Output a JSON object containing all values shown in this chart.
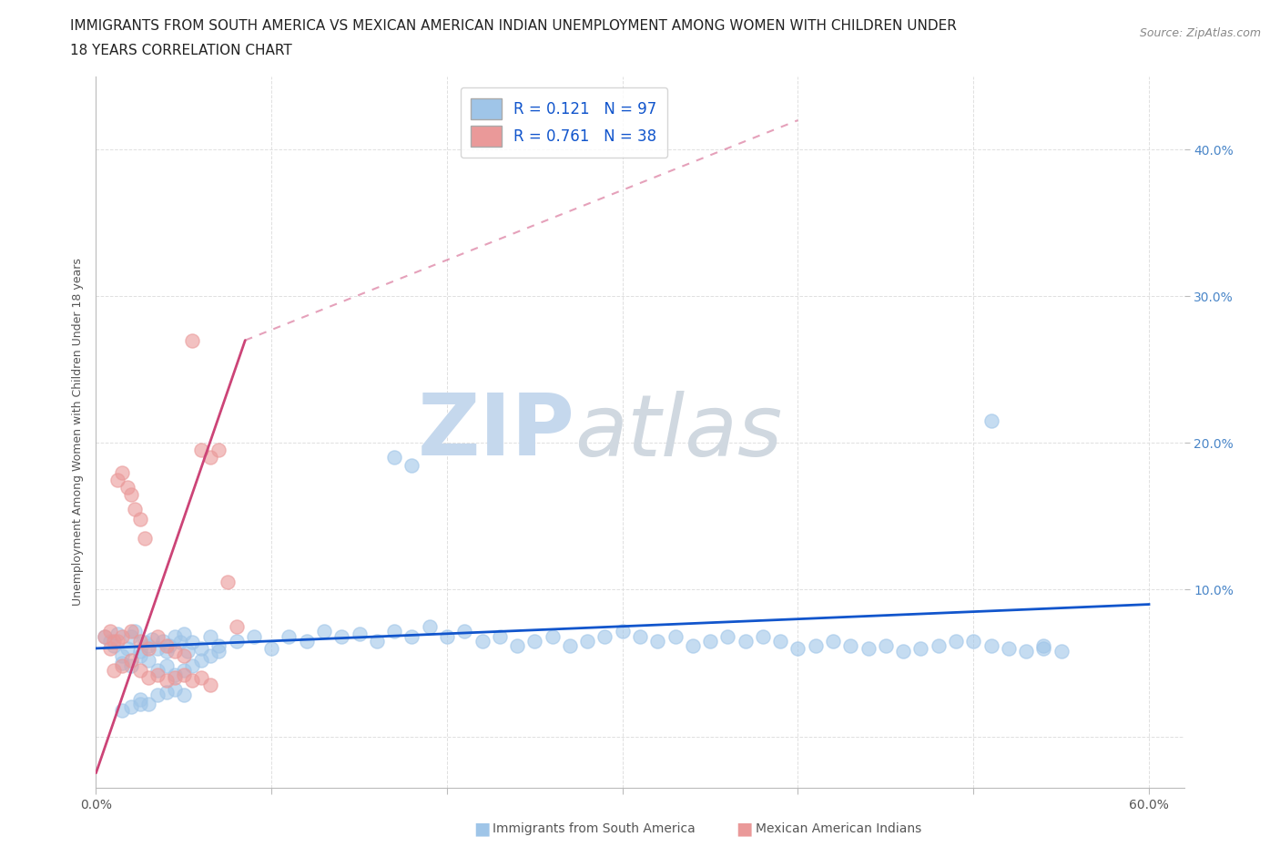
{
  "title_line1": "IMMIGRANTS FROM SOUTH AMERICA VS MEXICAN AMERICAN INDIAN UNEMPLOYMENT AMONG WOMEN WITH CHILDREN UNDER",
  "title_line2": "18 YEARS CORRELATION CHART",
  "source": "Source: ZipAtlas.com",
  "ylabel": "Unemployment Among Women with Children Under 18 years",
  "xlim": [
    0.0,
    0.62
  ],
  "ylim": [
    -0.035,
    0.45
  ],
  "blue_R": 0.121,
  "blue_N": 97,
  "pink_R": 0.761,
  "pink_N": 38,
  "blue_color": "#9fc5e8",
  "pink_color": "#ea9999",
  "blue_line_color": "#1155cc",
  "pink_line_color": "#cc4477",
  "right_tick_color": "#4a86c8",
  "watermark_zip_color": "#c5d8ed",
  "watermark_atlas_color": "#d0d8e0",
  "grid_color": "#e0e0e0",
  "background_color": "#ffffff",
  "title_fontsize": 11,
  "axis_label_fontsize": 9,
  "tick_fontsize": 10,
  "legend_fontsize": 12,
  "source_fontsize": 9,
  "blue_x": [
    0.005,
    0.008,
    0.01,
    0.012,
    0.015,
    0.018,
    0.02,
    0.022,
    0.025,
    0.028,
    0.03,
    0.032,
    0.035,
    0.038,
    0.04,
    0.042,
    0.045,
    0.048,
    0.05,
    0.052,
    0.055,
    0.06,
    0.065,
    0.07,
    0.015,
    0.02,
    0.025,
    0.03,
    0.035,
    0.04,
    0.045,
    0.05,
    0.055,
    0.06,
    0.065,
    0.07,
    0.08,
    0.09,
    0.1,
    0.11,
    0.12,
    0.13,
    0.14,
    0.15,
    0.16,
    0.17,
    0.18,
    0.19,
    0.2,
    0.21,
    0.22,
    0.23,
    0.24,
    0.25,
    0.26,
    0.27,
    0.28,
    0.29,
    0.3,
    0.31,
    0.32,
    0.33,
    0.34,
    0.35,
    0.36,
    0.37,
    0.38,
    0.39,
    0.4,
    0.41,
    0.42,
    0.43,
    0.44,
    0.45,
    0.46,
    0.47,
    0.48,
    0.49,
    0.5,
    0.51,
    0.52,
    0.53,
    0.54,
    0.55,
    0.17,
    0.18,
    0.51,
    0.54,
    0.025,
    0.03,
    0.035,
    0.015,
    0.02,
    0.025,
    0.04,
    0.045,
    0.05
  ],
  "blue_y": [
    0.068,
    0.065,
    0.062,
    0.07,
    0.055,
    0.06,
    0.068,
    0.072,
    0.058,
    0.064,
    0.062,
    0.066,
    0.06,
    0.065,
    0.058,
    0.062,
    0.068,
    0.064,
    0.07,
    0.058,
    0.064,
    0.06,
    0.068,
    0.062,
    0.05,
    0.048,
    0.055,
    0.052,
    0.045,
    0.048,
    0.042,
    0.045,
    0.048,
    0.052,
    0.055,
    0.058,
    0.065,
    0.068,
    0.06,
    0.068,
    0.065,
    0.072,
    0.068,
    0.07,
    0.065,
    0.072,
    0.068,
    0.075,
    0.068,
    0.072,
    0.065,
    0.068,
    0.062,
    0.065,
    0.068,
    0.062,
    0.065,
    0.068,
    0.072,
    0.068,
    0.065,
    0.068,
    0.062,
    0.065,
    0.068,
    0.065,
    0.068,
    0.065,
    0.06,
    0.062,
    0.065,
    0.062,
    0.06,
    0.062,
    0.058,
    0.06,
    0.062,
    0.065,
    0.065,
    0.062,
    0.06,
    0.058,
    0.06,
    0.058,
    0.19,
    0.185,
    0.215,
    0.062,
    0.025,
    0.022,
    0.028,
    0.018,
    0.02,
    0.022,
    0.03,
    0.032,
    0.028
  ],
  "pink_x": [
    0.005,
    0.008,
    0.01,
    0.012,
    0.015,
    0.018,
    0.02,
    0.022,
    0.025,
    0.028,
    0.008,
    0.012,
    0.015,
    0.02,
    0.025,
    0.03,
    0.035,
    0.04,
    0.045,
    0.05,
    0.055,
    0.06,
    0.065,
    0.07,
    0.075,
    0.08,
    0.01,
    0.015,
    0.02,
    0.025,
    0.03,
    0.035,
    0.04,
    0.045,
    0.05,
    0.055,
    0.06,
    0.065
  ],
  "pink_y": [
    0.068,
    0.072,
    0.065,
    0.175,
    0.18,
    0.17,
    0.165,
    0.155,
    0.148,
    0.135,
    0.06,
    0.065,
    0.068,
    0.072,
    0.065,
    0.06,
    0.068,
    0.062,
    0.058,
    0.055,
    0.27,
    0.195,
    0.19,
    0.195,
    0.105,
    0.075,
    0.045,
    0.048,
    0.052,
    0.045,
    0.04,
    0.042,
    0.038,
    0.04,
    0.042,
    0.038,
    0.04,
    0.035
  ],
  "blue_trend": [
    0.0,
    0.6,
    0.06,
    0.09
  ],
  "pink_trend_solid": [
    0.0,
    0.085,
    -0.025,
    0.27
  ],
  "pink_trend_dashed": [
    0.085,
    0.4,
    0.27,
    0.42
  ]
}
